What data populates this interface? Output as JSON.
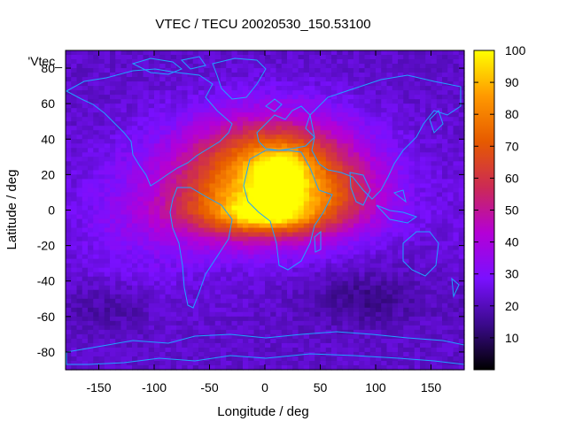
{
  "chart_data": {
    "type": "heatmap",
    "title": "VTEC / TECU 20020530_150.53100",
    "xlabel": "Longitude / deg",
    "ylabel": "Latitude / deg",
    "legend_entry": "'Vtec_",
    "xlim": [
      -180,
      180
    ],
    "ylim": [
      -90,
      90
    ],
    "xticks": [
      -150,
      -100,
      -50,
      0,
      50,
      100,
      150
    ],
    "yticks": [
      -80,
      -60,
      -40,
      -20,
      0,
      20,
      40,
      60,
      80
    ],
    "colorbar": {
      "range": [
        0,
        100
      ],
      "ticks": [
        10,
        20,
        30,
        40,
        50,
        60,
        70,
        80,
        90,
        100
      ],
      "palette": [
        "#000000",
        "#3b0a8c",
        "#7a10ff",
        "#b400d6",
        "#cc2a55",
        "#e65a00",
        "#ff9900",
        "#ffff00"
      ]
    },
    "features": [
      {
        "lon": 5,
        "lat": 20,
        "sigma_lon": 55,
        "sigma_lat": 22,
        "amp": 68
      },
      {
        "lon": -5,
        "lat": -2,
        "sigma_lon": 60,
        "sigma_lat": 11,
        "amp": 28
      },
      {
        "lon": 15,
        "lat": 22,
        "sigma_lon": 16,
        "sigma_lat": 9,
        "amp": 22
      },
      {
        "lon": 0,
        "lat": -3,
        "sigma_lon": 25,
        "sigma_lat": 5,
        "amp": 22
      },
      {
        "lon": 70,
        "lat": 10,
        "sigma_lon": 35,
        "sigma_lat": 14,
        "amp": 8
      },
      {
        "lon": -110,
        "lat": -5,
        "sigma_lon": 50,
        "sigma_lat": 30,
        "amp": 8
      },
      {
        "lon": 90,
        "lat": -50,
        "sigma_lon": 35,
        "sigma_lat": 10,
        "amp": -8
      },
      {
        "lon": -140,
        "lat": -55,
        "sigma_lon": 30,
        "sigma_lat": 10,
        "amp": -6
      }
    ],
    "base_value": 22
  },
  "colors": {
    "coastline": "#1fa3ff",
    "axis": "#000000"
  }
}
